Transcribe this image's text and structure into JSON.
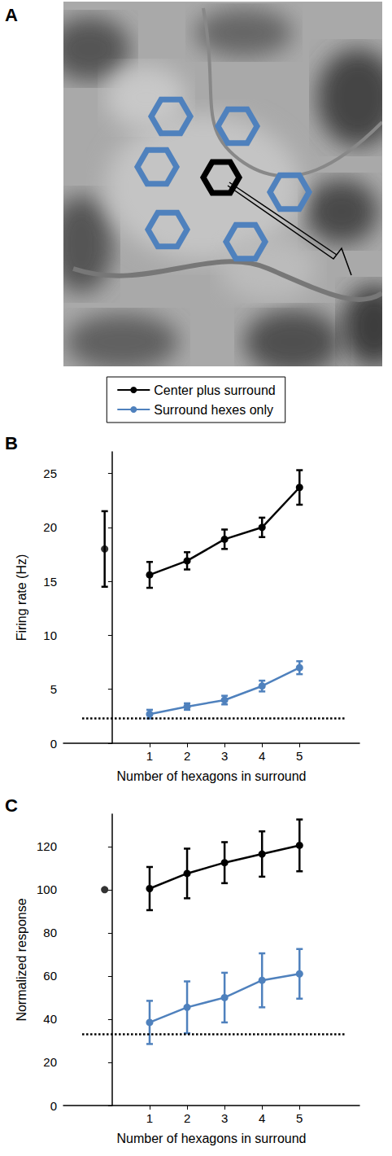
{
  "image_panel": {
    "label": "A"
  },
  "chart_data": [
    {
      "panel": "B",
      "type": "line",
      "x_label": "Number of hexagons in surround",
      "y_label": "Firing rate (Hz)",
      "xlim": [
        -1.3,
        6.6
      ],
      "xticks": [
        1,
        2,
        3,
        4,
        5
      ],
      "ylim": [
        0,
        27
      ],
      "yticks": [
        0,
        5,
        10,
        15,
        20,
        25
      ],
      "grid": false,
      "legend": "top",
      "series": [
        {
          "name": "Center plus surround",
          "color": "#000000",
          "marker": "circle",
          "line_style": "solid",
          "x": [
            1,
            2,
            3,
            4,
            5
          ],
          "values": [
            15.6,
            16.9,
            18.9,
            20.0,
            23.7
          ],
          "error": [
            1.2,
            0.8,
            0.9,
            0.9,
            1.6
          ]
        },
        {
          "name": "Surround hexes only",
          "color": "#4f81bd",
          "marker": "circle",
          "line_style": "solid",
          "x": [
            1,
            2,
            3,
            4,
            5
          ],
          "values": [
            2.7,
            3.4,
            4.0,
            5.3,
            7.0
          ],
          "error": [
            0.4,
            0.3,
            0.4,
            0.5,
            0.6
          ]
        },
        {
          "color": "#000000",
          "marker": "circle",
          "line_style": "none",
          "x": [
            -0.2
          ],
          "values": [
            18.0
          ],
          "error": [
            3.5
          ]
        }
      ],
      "reference_line": {
        "y": 2.3,
        "x": [
          -0.8,
          6.2
        ],
        "line_style": "dotted",
        "color": "#000000"
      }
    },
    {
      "panel": "C",
      "type": "line",
      "x_label": "Number of hexagons in surround",
      "y_label": "Normalized response",
      "xlim": [
        -1.3,
        6.6
      ],
      "xticks": [
        1,
        2,
        3,
        4,
        5
      ],
      "ylim": [
        0,
        135
      ],
      "yticks": [
        0,
        20,
        40,
        60,
        80,
        100,
        120
      ],
      "grid": false,
      "series": [
        {
          "name": "Center plus surround",
          "color": "#000000",
          "marker": "circle",
          "line_style": "solid",
          "x": [
            1,
            2,
            3,
            4,
            5
          ],
          "values": [
            100.5,
            107.5,
            112.5,
            116.5,
            120.5
          ],
          "error": [
            10,
            11.5,
            9.5,
            10.5,
            12
          ]
        },
        {
          "name": "Surround hexes only",
          "color": "#4f81bd",
          "marker": "circle",
          "line_style": "solid",
          "x": [
            1,
            2,
            3,
            4,
            5
          ],
          "values": [
            38.5,
            45.5,
            50.0,
            58.0,
            61.0
          ],
          "error": [
            10,
            12,
            11.5,
            12.5,
            11.5
          ]
        },
        {
          "color": "#000000",
          "marker": "circle",
          "line_style": "none",
          "x": [
            -0.2
          ],
          "values": [
            100.0
          ],
          "error": [
            null
          ]
        }
      ],
      "reference_line": {
        "y": 33,
        "x": [
          -0.8,
          6.2
        ],
        "line_style": "dotted",
        "color": "#000000"
      }
    }
  ]
}
